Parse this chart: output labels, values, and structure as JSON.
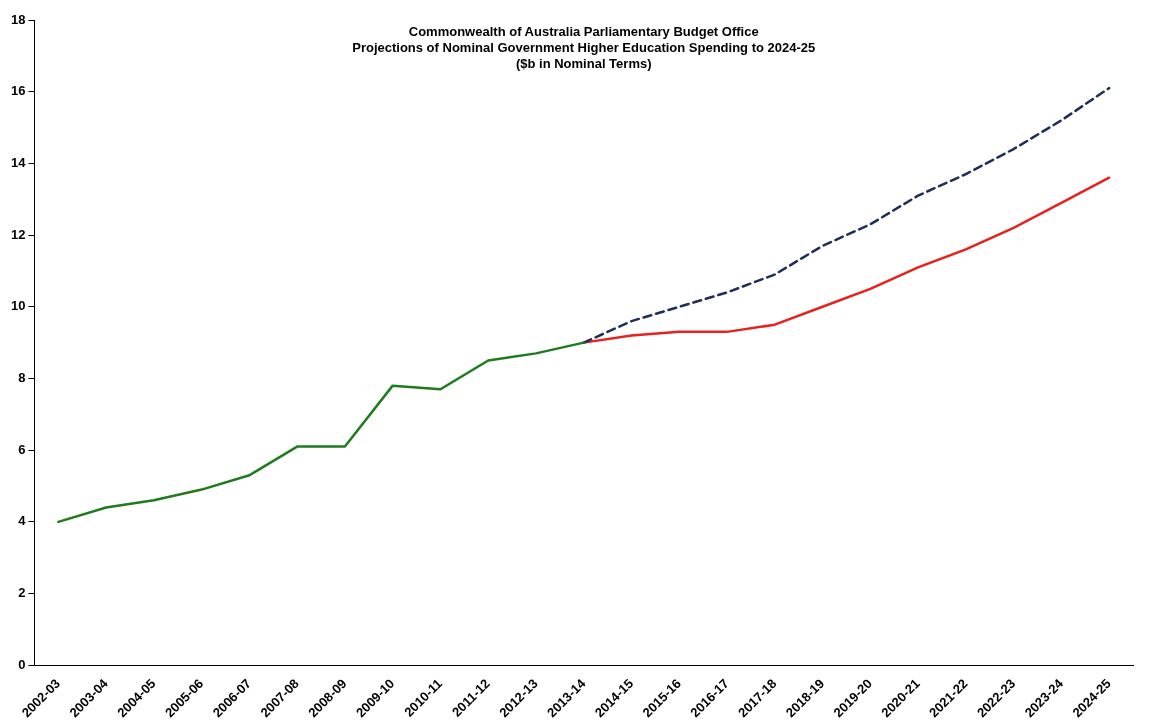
{
  "chart_data": {
    "type": "line",
    "title": "Commonwealth of Australia Parliamentary Budget Office",
    "subtitle": "Projections of Nominal Government Higher Education Spending to 2024-25\n($b in Nominal Terms)",
    "categories": [
      "2002-03",
      "2003-04",
      "2004-05",
      "2005-06",
      "2006-07",
      "2007-08",
      "2008-09",
      "2009-10",
      "2010-11",
      "2011-12",
      "2012-13",
      "2013-14",
      "2014-15",
      "2015-16",
      "2016-17",
      "2017-18",
      "2018-19",
      "2019-20",
      "2020-21",
      "2021-22",
      "2022-23",
      "2023-24",
      "2024-25"
    ],
    "series": [
      {
        "color": "#1e7b1e",
        "line_style": "solid",
        "values": [
          4.0,
          4.4,
          4.6,
          4.9,
          5.3,
          6.1,
          6.1,
          7.8,
          7.7,
          8.5,
          8.7,
          9.0,
          null,
          null,
          null,
          null,
          null,
          null,
          null,
          null,
          null,
          null,
          null
        ]
      },
      {
        "color": "#1f2d5a",
        "line_style": "dashed",
        "values": [
          null,
          null,
          null,
          null,
          null,
          null,
          null,
          null,
          null,
          null,
          null,
          9.0,
          9.6,
          10.0,
          10.4,
          10.9,
          11.7,
          12.3,
          13.1,
          13.7,
          14.4,
          15.2,
          16.1
        ]
      },
      {
        "color": "#e8201e",
        "line_style": "solid",
        "values": [
          null,
          null,
          null,
          null,
          null,
          null,
          null,
          null,
          null,
          null,
          null,
          9.0,
          9.2,
          9.3,
          9.3,
          9.5,
          10.0,
          10.5,
          11.1,
          11.6,
          12.2,
          12.9,
          13.6
        ]
      }
    ],
    "ylim": [
      0,
      18
    ],
    "yticks": [
      0,
      2,
      4,
      6,
      8,
      10,
      12,
      14,
      16,
      18
    ],
    "grid": false,
    "legend": false,
    "marker": "none"
  }
}
